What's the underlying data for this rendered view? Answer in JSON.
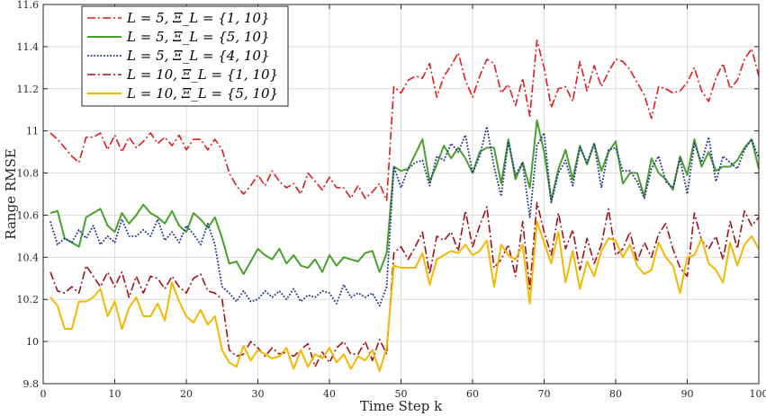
{
  "chart_data": {
    "type": "line",
    "xlabel": "Time Step k",
    "ylabel": "Range RMSE",
    "xlim": [
      0,
      100
    ],
    "ylim": [
      9.8,
      11.6
    ],
    "xticks": [
      0,
      10,
      20,
      30,
      40,
      50,
      60,
      70,
      80,
      90,
      100
    ],
    "yticks": [
      9.8,
      10,
      10.2,
      10.4,
      10.6,
      10.8,
      11,
      11.2,
      11.4,
      11.6
    ],
    "xtick_labels": [
      "0",
      "10",
      "20",
      "30",
      "40",
      "50",
      "60",
      "70",
      "80",
      "90",
      "100"
    ],
    "ytick_labels": [
      "9.8",
      "10",
      "10.2",
      "10.4",
      "10.6",
      "10.8",
      "11",
      "11.2",
      "11.4",
      "11.6"
    ],
    "grid": true,
    "legend_position": "top-left",
    "x": [
      1,
      2,
      3,
      4,
      5,
      6,
      7,
      8,
      9,
      10,
      11,
      12,
      13,
      14,
      15,
      16,
      17,
      18,
      19,
      20,
      21,
      22,
      23,
      24,
      25,
      26,
      27,
      28,
      29,
      30,
      31,
      32,
      33,
      34,
      35,
      36,
      37,
      38,
      39,
      40,
      41,
      42,
      43,
      44,
      45,
      46,
      47,
      48,
      49,
      50,
      51,
      52,
      53,
      54,
      55,
      56,
      57,
      58,
      59,
      60,
      61,
      62,
      63,
      64,
      65,
      66,
      67,
      68,
      69,
      70,
      71,
      72,
      73,
      74,
      75,
      76,
      77,
      78,
      79,
      80,
      81,
      82,
      83,
      84,
      85,
      86,
      87,
      88,
      89,
      90,
      91,
      92,
      93,
      94,
      95,
      96,
      97,
      98,
      99,
      100
    ],
    "series": [
      {
        "name": "L = 5,   Ξ_L = {1, 10}",
        "color": "#e41a1c",
        "dash": "dashdot",
        "values": [
          10.99,
          10.96,
          10.92,
          10.88,
          10.85,
          10.97,
          10.97,
          10.99,
          10.91,
          10.98,
          10.9,
          10.97,
          10.92,
          10.95,
          10.99,
          10.94,
          10.97,
          10.93,
          10.98,
          10.91,
          10.96,
          10.96,
          10.91,
          10.96,
          10.91,
          10.8,
          10.74,
          10.7,
          10.74,
          10.79,
          10.74,
          10.81,
          10.76,
          10.73,
          10.75,
          10.7,
          10.8,
          10.76,
          10.72,
          10.78,
          10.73,
          10.73,
          10.68,
          10.74,
          10.68,
          10.71,
          10.75,
          10.67,
          11.21,
          11.18,
          11.24,
          11.26,
          11.25,
          11.32,
          11.16,
          11.26,
          11.31,
          11.37,
          11.24,
          11.16,
          11.26,
          11.34,
          11.32,
          11.18,
          11.22,
          11.12,
          11.25,
          11.07,
          11.43,
          11.3,
          11.11,
          11.2,
          11.21,
          11.14,
          11.33,
          11.19,
          11.31,
          11.21,
          11.28,
          11.34,
          11.33,
          11.29,
          11.23,
          11.17,
          11.06,
          11.21,
          11.2,
          11.18,
          11.19,
          11.23,
          11.3,
          11.19,
          11.14,
          11.25,
          11.32,
          11.2,
          11.24,
          11.34,
          11.39,
          11.26
        ]
      },
      {
        "name": "L = 5,   Ξ_L = {5, 10}",
        "color": "#4aa02c",
        "dash": "solid",
        "values": [
          10.61,
          10.62,
          10.49,
          10.47,
          10.45,
          10.59,
          10.61,
          10.63,
          10.55,
          10.52,
          10.61,
          10.56,
          10.6,
          10.65,
          10.61,
          10.59,
          10.56,
          10.62,
          10.55,
          10.52,
          10.61,
          10.58,
          10.54,
          10.59,
          10.49,
          10.37,
          10.38,
          10.32,
          10.38,
          10.44,
          10.41,
          10.39,
          10.44,
          10.37,
          10.41,
          10.36,
          10.35,
          10.39,
          10.33,
          10.41,
          10.36,
          10.4,
          10.39,
          10.38,
          10.42,
          10.43,
          10.33,
          10.42,
          10.83,
          10.81,
          10.82,
          10.89,
          10.96,
          10.76,
          10.84,
          10.93,
          10.87,
          10.92,
          10.87,
          10.8,
          10.9,
          10.92,
          10.92,
          10.75,
          10.96,
          10.77,
          10.85,
          10.73,
          11.05,
          10.9,
          10.67,
          10.82,
          10.91,
          10.77,
          10.93,
          10.84,
          10.94,
          10.81,
          10.9,
          10.95,
          10.75,
          10.8,
          10.8,
          10.69,
          10.87,
          10.8,
          10.77,
          10.72,
          10.88,
          10.79,
          10.96,
          10.83,
          10.9,
          10.81,
          10.83,
          10.83,
          10.86,
          10.92,
          10.96,
          10.82
        ]
      },
      {
        "name": "L = 5,   Ξ_L = {4, 10}",
        "color": "#23349b",
        "dash": "dotted",
        "values": [
          10.57,
          10.46,
          10.49,
          10.47,
          10.53,
          10.49,
          10.55,
          10.46,
          10.5,
          10.47,
          10.58,
          10.5,
          10.5,
          10.53,
          10.5,
          10.58,
          10.48,
          10.52,
          10.47,
          10.55,
          10.51,
          10.46,
          10.56,
          10.46,
          10.26,
          10.23,
          10.19,
          10.24,
          10.19,
          10.2,
          10.24,
          10.21,
          10.24,
          10.2,
          10.25,
          10.19,
          10.22,
          10.21,
          10.24,
          10.23,
          10.18,
          10.27,
          10.21,
          10.23,
          10.21,
          10.23,
          10.17,
          10.26,
          10.83,
          10.73,
          10.82,
          10.85,
          10.86,
          10.74,
          10.88,
          10.86,
          10.94,
          10.9,
          10.98,
          10.8,
          10.88,
          11.02,
          10.83,
          10.69,
          10.95,
          10.79,
          10.85,
          10.59,
          10.93,
          10.99,
          10.66,
          10.8,
          10.86,
          10.74,
          10.92,
          10.85,
          10.94,
          10.73,
          10.91,
          10.92,
          10.81,
          10.81,
          10.76,
          10.68,
          10.82,
          10.88,
          10.76,
          10.73,
          10.87,
          10.7,
          10.94,
          10.85,
          10.97,
          10.76,
          10.88,
          10.85,
          10.82,
          10.91,
          10.96,
          10.87
        ]
      },
      {
        "name": "L = 10,   Ξ_L = {1, 10}",
        "color": "#a50f15",
        "dash": "dashdot",
        "values": [
          10.33,
          10.24,
          10.23,
          10.26,
          10.23,
          10.36,
          10.31,
          10.26,
          10.33,
          10.26,
          10.33,
          10.21,
          10.31,
          10.23,
          10.31,
          10.3,
          10.25,
          10.31,
          10.26,
          10.23,
          10.3,
          10.32,
          10.24,
          10.23,
          10.2,
          9.96,
          9.93,
          9.94,
          10.0,
          9.97,
          9.93,
          9.97,
          9.94,
          9.95,
          9.93,
          9.96,
          9.99,
          9.88,
          9.95,
          9.9,
          9.97,
          10.0,
          9.94,
          9.94,
          10.0,
          9.91,
          10.01,
          9.94,
          10.42,
          10.45,
          10.39,
          10.45,
          10.52,
          10.32,
          10.5,
          10.48,
          10.52,
          10.43,
          10.62,
          10.45,
          10.55,
          10.64,
          10.35,
          10.39,
          10.46,
          10.31,
          10.57,
          10.25,
          10.66,
          10.52,
          10.41,
          10.61,
          10.44,
          10.53,
          10.34,
          10.49,
          10.37,
          10.46,
          10.63,
          10.41,
          10.44,
          10.52,
          10.38,
          10.47,
          10.4,
          10.51,
          10.56,
          10.44,
          10.35,
          10.31,
          10.61,
          10.48,
          10.44,
          10.5,
          10.39,
          10.57,
          10.44,
          10.62,
          10.55,
          10.59
        ]
      },
      {
        "name": "L = 10,   Ξ_L = {5, 10}",
        "color": "#f5b800",
        "dash": "solid",
        "values": [
          10.21,
          10.17,
          10.06,
          10.06,
          10.19,
          10.19,
          10.21,
          10.25,
          10.12,
          10.19,
          10.06,
          10.16,
          10.21,
          10.12,
          10.12,
          10.18,
          10.1,
          10.28,
          10.19,
          10.12,
          10.09,
          10.15,
          10.08,
          10.12,
          9.96,
          9.9,
          9.88,
          9.98,
          9.91,
          9.96,
          9.94,
          9.92,
          9.93,
          9.97,
          9.87,
          9.96,
          9.88,
          9.94,
          9.92,
          9.97,
          9.9,
          9.94,
          9.87,
          9.93,
          9.91,
          9.96,
          9.86,
          9.97,
          10.36,
          10.35,
          10.35,
          10.35,
          10.42,
          10.27,
          10.39,
          10.41,
          10.43,
          10.42,
          10.46,
          10.41,
          10.43,
          10.48,
          10.26,
          10.46,
          10.41,
          10.39,
          10.46,
          10.18,
          10.57,
          10.47,
          10.37,
          10.52,
          10.28,
          10.43,
          10.25,
          10.38,
          10.31,
          10.43,
          10.49,
          10.48,
          10.4,
          10.46,
          10.36,
          10.32,
          10.34,
          10.47,
          10.4,
          10.36,
          10.23,
          10.4,
          10.41,
          10.49,
          10.37,
          10.34,
          10.28,
          10.47,
          10.36,
          10.46,
          10.5,
          10.44
        ]
      }
    ]
  }
}
